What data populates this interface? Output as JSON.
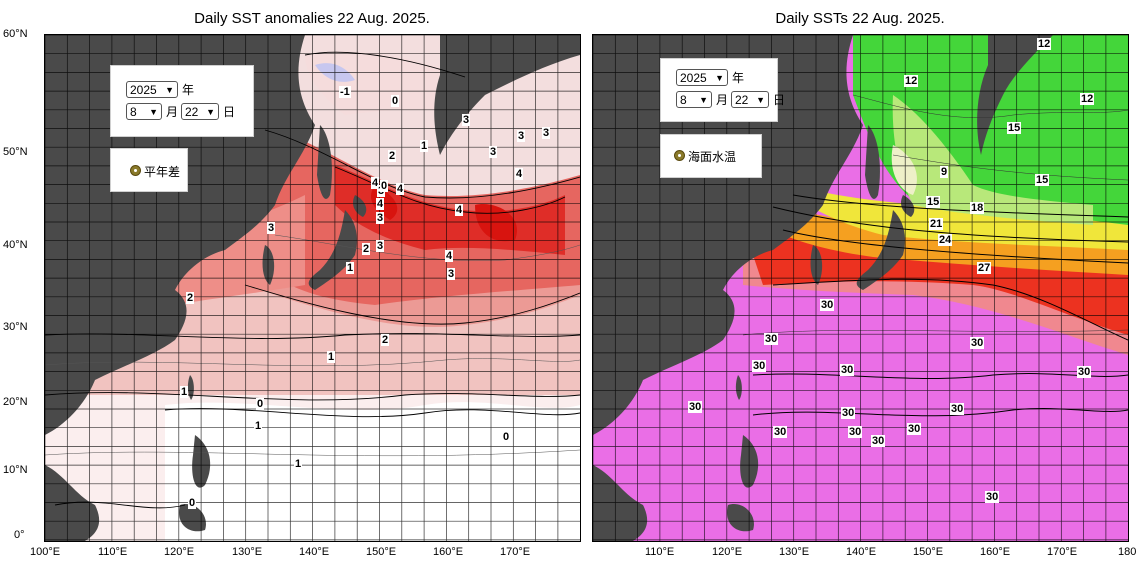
{
  "left_panel": {
    "title": "Daily SST anomalies 22 Aug. 2025.",
    "year_value": "2025",
    "year_unit": "年",
    "month_value": "8",
    "month_unit": "月",
    "day_value": "22",
    "day_unit": "日",
    "radio_label": "平年差",
    "contour_labels": [
      "-1",
      "0",
      "2",
      "1",
      "3",
      "3",
      "3",
      "3",
      "4",
      "4",
      "3",
      "4",
      "4",
      "4",
      "3",
      "3",
      "2",
      "1",
      "3",
      "4",
      "3",
      "2",
      "2",
      "1",
      "1",
      "0",
      "1",
      "0",
      "1",
      "0",
      "0"
    ]
  },
  "right_panel": {
    "title": "Daily SSTs 22 Aug. 2025.",
    "year_value": "2025",
    "year_unit": "年",
    "month_value": "8",
    "month_unit": "月",
    "day_value": "22",
    "day_unit": "日",
    "radio_label": "海面水温",
    "contour_labels": [
      "12",
      "12",
      "12",
      "15",
      "9",
      "15",
      "15",
      "18",
      "21",
      "24",
      "27",
      "30",
      "30",
      "30",
      "30",
      "30",
      "30",
      "30",
      "30",
      "30",
      "30",
      "30",
      "30",
      "30",
      "30"
    ]
  },
  "lat_labels": [
    "60°N",
    "50°N",
    "40°N",
    "30°N",
    "20°N",
    "10°N",
    "0°"
  ],
  "left_lon_labels": [
    "100°E",
    "110°E",
    "120°E",
    "130°E",
    "140°E",
    "150°E",
    "160°E",
    "170°E"
  ],
  "right_lon_labels": [
    "110°E",
    "120°E",
    "130°E",
    "140°E",
    "150°E",
    "160°E",
    "170°E",
    "180"
  ],
  "colors": {
    "land": "#4a4a4a",
    "anomaly_strong": "#e2302c",
    "anomaly_mid": "#ee8a86",
    "anomaly_weak": "#f7cfcc",
    "anomaly_neutral": "#ffffff",
    "anomaly_negative": "#c9c9f2",
    "sst_cold": "#44d63a",
    "sst_mid": "#f0e63a",
    "sst_warm": "#f5a020",
    "sst_hot": "#ec3220",
    "sst_tropical": "#ea6ee6"
  }
}
